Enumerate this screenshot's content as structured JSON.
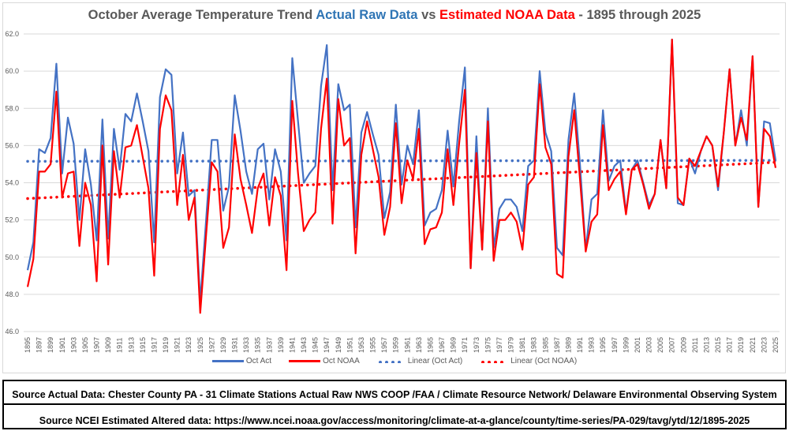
{
  "title": {
    "part1": "October Average Temperature Trend ",
    "part2": "Actual Raw Data",
    "part3": " vs ",
    "part4": "Estimated NOAA Data",
    "part5": " - 1895 through 2025"
  },
  "colors": {
    "act": "#4472c4",
    "noaa": "#ff0000",
    "title_blue": "#2f75b5",
    "title_red": "#ff0000",
    "grid": "#d9d9d9"
  },
  "legend": [
    {
      "label": "Oct Act",
      "style": "line",
      "series": "act"
    },
    {
      "label": "Oct NOAA",
      "style": "line",
      "series": "noaa"
    },
    {
      "label": "Linear (Oct Act)",
      "style": "dots",
      "series": "act"
    },
    {
      "label": "Linear (Oct NOAA)",
      "style": "dots",
      "series": "noaa"
    }
  ],
  "sources": {
    "line1": "Source Actual Data: Chester County PA - 31 Climate Stations Actual Raw NWS COOP /FAA / Climate Resource Network/ Delaware Environmental Observing System",
    "line2": "Source NCEI Estimated Altered data:  https://www.ncei.noaa.gov/access/monitoring/climate-at-a-glance/county/time-series/PA-029/tavg/ytd/12/1895-2025"
  },
  "chart_data": {
    "type": "line",
    "title": "October Average Temperature Trend Actual Raw Data vs Estimated NOAA Data - 1895 through 2025",
    "xlabel": "",
    "ylabel": "",
    "x_start": 1895,
    "x_end": 2025,
    "x_tick_step": 2,
    "ylim": [
      46.0,
      62.0
    ],
    "y_ticks": [
      "46.0",
      "48.0",
      "50.0",
      "52.0",
      "54.0",
      "56.0",
      "58.0",
      "60.0",
      "62.0"
    ],
    "grid": "horizontal",
    "legend_position": "bottom",
    "series": [
      {
        "name": "Oct Act",
        "color": "#4472c4",
        "values": [
          49.3,
          50.8,
          55.8,
          55.6,
          56.4,
          60.4,
          54.5,
          57.5,
          56.1,
          52.0,
          55.8,
          53.9,
          50.9,
          57.4,
          51.0,
          56.9,
          54.7,
          57.7,
          57.3,
          58.8,
          57.3,
          55.7,
          50.8,
          58.6,
          60.1,
          59.8,
          54.5,
          56.7,
          53.3,
          53.6,
          47.6,
          51.9,
          56.3,
          56.3,
          52.5,
          53.8,
          58.7,
          56.8,
          54.6,
          53.4,
          55.8,
          56.1,
          53.1,
          55.8,
          54.6,
          50.9,
          60.7,
          57.3,
          54.0,
          54.5,
          54.9,
          59.2,
          61.4,
          53.6,
          59.3,
          57.9,
          58.2,
          51.6,
          56.7,
          57.8,
          56.6,
          55.5,
          52.1,
          53.5,
          58.2,
          53.9,
          56.0,
          55.0,
          57.9,
          51.7,
          52.4,
          52.6,
          53.6,
          56.8,
          53.8,
          57.3,
          60.2,
          49.4,
          56.5,
          50.4,
          58.0,
          50.5,
          52.6,
          53.1,
          53.1,
          52.7,
          51.4,
          54.9,
          55.2,
          60.0,
          56.7,
          55.7,
          50.5,
          50.1,
          56.3,
          58.8,
          55.0,
          50.4,
          53.1,
          53.4,
          57.9,
          54.1,
          54.9,
          55.2,
          52.4,
          54.7,
          55.2,
          54.0,
          52.8,
          53.4,
          56.3,
          53.7,
          61.7,
          52.9,
          52.8,
          55.3,
          54.5,
          55.7,
          56.5,
          56.0,
          53.6,
          56.7,
          60.1,
          56.0,
          57.9,
          56.0,
          60.8,
          52.7,
          57.3,
          57.2,
          55.2
        ]
      },
      {
        "name": "Oct NOAA",
        "color": "#ff0000",
        "values": [
          48.4,
          49.9,
          54.6,
          54.6,
          55.0,
          58.9,
          53.2,
          54.5,
          54.6,
          50.6,
          54.0,
          52.8,
          48.7,
          56.0,
          49.6,
          55.7,
          53.2,
          55.9,
          56.0,
          57.1,
          55.4,
          53.7,
          49.0,
          56.9,
          58.7,
          57.9,
          52.8,
          55.5,
          52.0,
          53.2,
          47.0,
          51.1,
          55.1,
          54.6,
          50.5,
          51.6,
          56.6,
          54.2,
          52.8,
          51.3,
          53.7,
          54.5,
          51.7,
          54.3,
          53.3,
          49.3,
          58.4,
          54.5,
          51.4,
          52.0,
          52.4,
          56.9,
          59.6,
          51.8,
          58.5,
          56.0,
          56.4,
          50.2,
          55.5,
          57.3,
          55.8,
          54.3,
          51.2,
          52.7,
          57.2,
          52.9,
          55.2,
          54.2,
          56.9,
          50.7,
          51.5,
          51.6,
          52.4,
          55.8,
          52.8,
          56.1,
          59.0,
          49.4,
          55.6,
          50.4,
          57.3,
          49.8,
          52.0,
          52.0,
          52.4,
          51.9,
          50.4,
          53.9,
          54.3,
          59.3,
          55.9,
          55.0,
          49.1,
          48.9,
          55.4,
          57.9,
          54.2,
          50.3,
          51.9,
          52.3,
          57.1,
          53.6,
          54.2,
          54.6,
          52.3,
          54.7,
          55.0,
          53.9,
          52.6,
          53.4,
          56.3,
          53.7,
          61.7,
          53.2,
          52.8,
          55.3,
          54.9,
          55.7,
          56.5,
          56.0,
          53.8,
          56.7,
          60.1,
          56.0,
          57.5,
          56.3,
          60.8,
          52.7,
          56.9,
          56.5,
          54.8
        ]
      }
    ],
    "trendlines": [
      {
        "name": "Linear (Oct Act)",
        "series": "Oct Act",
        "color": "#4472c4",
        "start": 55.15,
        "end": 55.2
      },
      {
        "name": "Linear (Oct NOAA)",
        "series": "Oct NOAA",
        "color": "#ff0000",
        "start": 53.15,
        "end": 55.1
      }
    ]
  }
}
